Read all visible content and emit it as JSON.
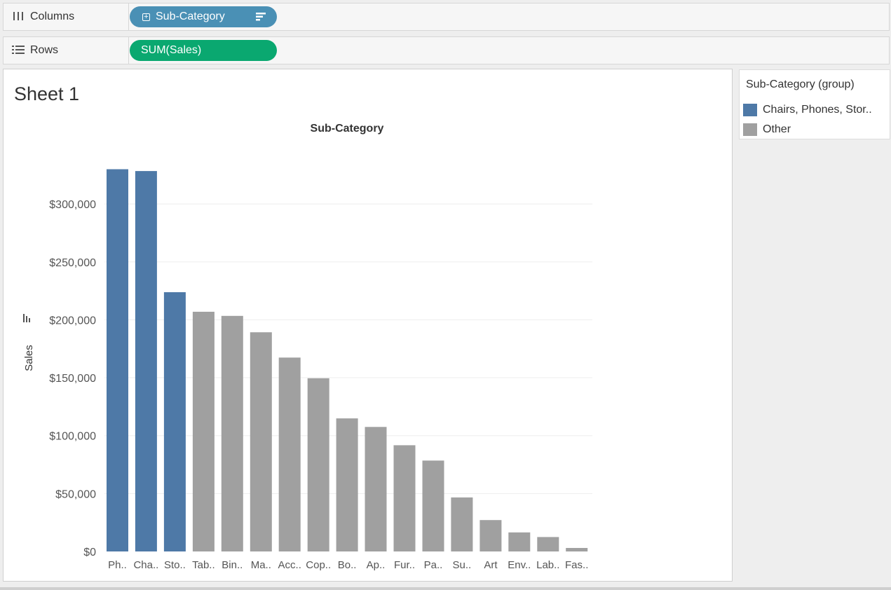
{
  "shelves": {
    "columns": {
      "label": "Columns",
      "pill": "Sub-Category",
      "icon": "columns-icon"
    },
    "rows": {
      "label": "Rows",
      "pill": "SUM(Sales)",
      "icon": "rows-icon"
    }
  },
  "sheet": {
    "title": "Sheet 1"
  },
  "legend": {
    "title": "Sub-Category (group)",
    "items": [
      {
        "label": "Chairs, Phones, Stor..",
        "color": "#4e79a7"
      },
      {
        "label": "Other",
        "color": "#a0a0a0"
      }
    ]
  },
  "colors": {
    "dimension_pill": "#4a90b5",
    "measure_pill": "#0aa870",
    "highlight": "#4e79a7",
    "other": "#a0a0a0"
  },
  "chart_data": {
    "type": "bar",
    "title": "Sub-Category",
    "xlabel": "",
    "ylabel": "Sales",
    "ylim": [
      0,
      340000
    ],
    "yticks": [
      0,
      50000,
      100000,
      150000,
      200000,
      250000,
      300000
    ],
    "ytick_labels": [
      "$0",
      "$50,000",
      "$100,000",
      "$150,000",
      "$200,000",
      "$250,000",
      "$300,000"
    ],
    "categories": [
      "Ph..",
      "Cha..",
      "Sto..",
      "Tab..",
      "Bin..",
      "Ma..",
      "Acc..",
      "Cop..",
      "Bo..",
      "Ap..",
      "Fur..",
      "Pa..",
      "Su..",
      "Art",
      "Env..",
      "Lab..",
      "Fas.."
    ],
    "values": [
      330007,
      328449,
      223844,
      206966,
      203413,
      189239,
      167380,
      149528,
      114880,
      107532,
      91705,
      78479,
      46674,
      27119,
      16476,
      12486,
      3024
    ],
    "groups": [
      "highlight",
      "highlight",
      "highlight",
      "other",
      "other",
      "other",
      "other",
      "other",
      "other",
      "other",
      "other",
      "other",
      "other",
      "other",
      "other",
      "other",
      "other"
    ],
    "grid": true,
    "legend_position": "right"
  }
}
